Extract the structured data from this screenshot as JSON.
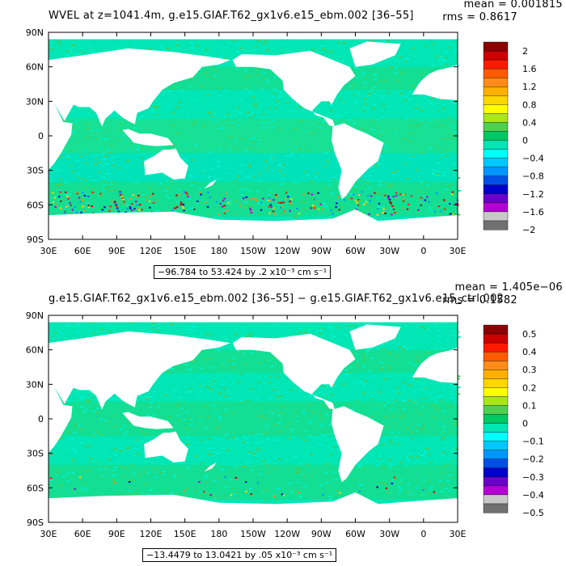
{
  "panels": [
    {
      "title": "WVEL at z=1041.4m, g.e15.GIAF.T62_gx1v6.e15_ebm.002 [36–55]",
      "mean_text": "mean = 0.001815",
      "rms_text": "rms = 0.8617",
      "range_text": "−96.784 to 53.424 by .2 x10⁻³ cm s⁻¹",
      "colorbar": {
        "labels": [
          "2",
          "1.6",
          "1.2",
          "0.8",
          "0.4",
          "0",
          "−0.4",
          "−0.8",
          "−1.2",
          "−1.6",
          "−2"
        ],
        "colors": [
          "#8b0000",
          "#cc0000",
          "#ff1a00",
          "#ff5a00",
          "#ff8c1a",
          "#ffb000",
          "#ffd600",
          "#ffff00",
          "#a8e61a",
          "#50d050",
          "#00c864",
          "#00e6b4",
          "#00ffff",
          "#00c8ff",
          "#0096ff",
          "#0050e6",
          "#0000cd",
          "#6a00c8",
          "#b400d2",
          "#c8c8c8",
          "#707070"
        ]
      }
    },
    {
      "title": "g.e15.GIAF.T62_gx1v6.e15_ebm.002 [36–55] − g.e15.GIAF.T62_gx1v6.e15_ctrl.002",
      "mean_text": "mean = 1.405e−06",
      "rms_text": "rms = 0.1582",
      "range_text": "−13.4479 to 13.0421 by .05 x10⁻³ cm s⁻¹",
      "colorbar": {
        "labels": [
          "0.5",
          "0.4",
          "0.3",
          "0.2",
          "0.1",
          "0",
          "−0.1",
          "−0.2",
          "−0.3",
          "−0.4",
          "−0.5"
        ],
        "colors": [
          "#8b0000",
          "#cc0000",
          "#ff1a00",
          "#ff5a00",
          "#ff8c1a",
          "#ffb000",
          "#ffd600",
          "#ffff00",
          "#a8e61a",
          "#50d050",
          "#00c864",
          "#00e6b4",
          "#00ffff",
          "#00c8ff",
          "#0096ff",
          "#0050e6",
          "#0000cd",
          "#6a00c8",
          "#b400d2",
          "#c8c8c8",
          "#707070"
        ]
      }
    }
  ],
  "chart_data": [
    {
      "type": "heatmap",
      "variable": "WVEL",
      "title": "WVEL at z=1041.4m, g.e15.GIAF.T62_gx1v6.e15_ebm.002 [36–55]",
      "mean": 0.001815,
      "rms": 0.8617,
      "data_min": -96.784,
      "data_max": 53.424,
      "contour_interval": 0.2,
      "units": "x10⁻³ cm s⁻¹",
      "x_ticks": [
        "30E",
        "60E",
        "90E",
        "120E",
        "150E",
        "180",
        "150W",
        "120W",
        "90W",
        "60W",
        "30W",
        "0",
        "30E"
      ],
      "y_ticks": [
        "90N",
        "60N",
        "30N",
        "0",
        "30S",
        "60S",
        "90S"
      ],
      "xlim": [
        30,
        390
      ],
      "ylim": [
        -90,
        90
      ],
      "color_levels": [
        -2,
        -1.6,
        -1.2,
        -0.8,
        -0.4,
        0,
        0.4,
        0.8,
        1.2,
        1.6,
        2
      ]
    },
    {
      "type": "heatmap",
      "variable": "WVEL difference",
      "title": "g.e15.GIAF.T62_gx1v6.e15_ebm.002 [36–55] − g.e15.GIAF.T62_gx1v6.e15_ctrl.002",
      "mean": 1.405e-06,
      "rms": 0.1582,
      "data_min": -13.4479,
      "data_max": 13.0421,
      "contour_interval": 0.05,
      "units": "x10⁻³ cm s⁻¹",
      "x_ticks": [
        "30E",
        "60E",
        "90E",
        "120E",
        "150E",
        "180",
        "150W",
        "120W",
        "90W",
        "60W",
        "30W",
        "0",
        "30E"
      ],
      "y_ticks": [
        "90N",
        "60N",
        "30N",
        "0",
        "30S",
        "60S",
        "90S"
      ],
      "xlim": [
        30,
        390
      ],
      "ylim": [
        -90,
        90
      ],
      "color_levels": [
        -0.5,
        -0.4,
        -0.3,
        -0.2,
        -0.1,
        0,
        0.1,
        0.2,
        0.3,
        0.4,
        0.5
      ]
    }
  ]
}
